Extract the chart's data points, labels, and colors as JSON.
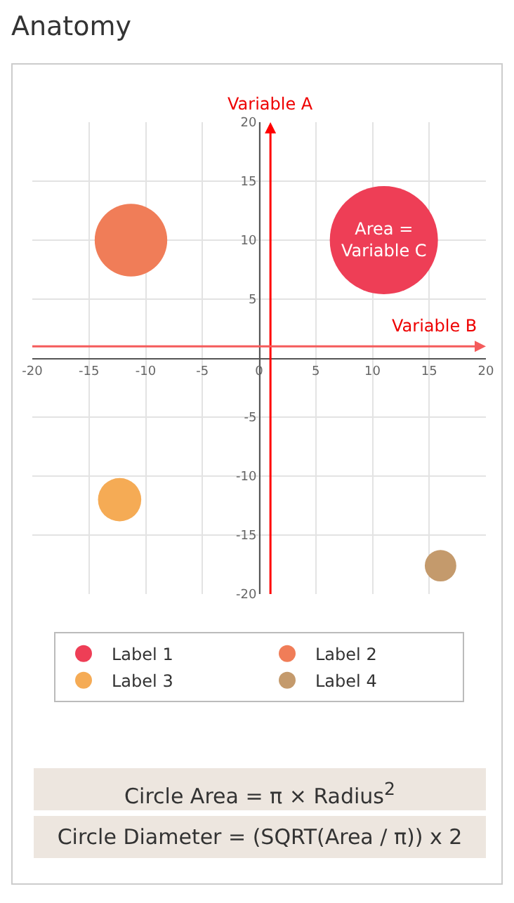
{
  "chart_data": {
    "type": "bubble",
    "title": "Anatomy",
    "xlabel": "Variable B",
    "ylabel": "Variable A",
    "xlim": [
      -20,
      20
    ],
    "xticks": [
      -20,
      -15,
      -10,
      -5,
      0,
      5,
      10,
      15,
      20
    ],
    "ylim": [
      -20,
      20
    ],
    "yticks": [
      -20,
      -15,
      -10,
      -5,
      5,
      10,
      15,
      20
    ],
    "ref_lines": [
      {
        "axis": "x",
        "value": 1,
        "color": "#ff0000"
      },
      {
        "axis": "y",
        "value": 1,
        "color": "#f45b5b"
      }
    ],
    "grid": true,
    "legend": "bottom",
    "series": [
      {
        "name": "Label 1",
        "color": "#ee3e56",
        "x": [
          11
        ],
        "values": [
          10
        ],
        "sizes": [
          1
        ]
      },
      {
        "name": "Label 2",
        "color": "#f07d58",
        "x": [
          -11.3
        ],
        "values": [
          10
        ],
        "sizes": [
          0.45
        ]
      },
      {
        "name": "Label 3",
        "color": "#f5ab55",
        "x": [
          -12.3
        ],
        "values": [
          -12
        ],
        "sizes": [
          0.16
        ]
      },
      {
        "name": "Label 4",
        "color": "#c49a6c",
        "x": [
          16
        ],
        "values": [
          -17.6
        ],
        "sizes": [
          0.085
        ]
      }
    ],
    "annotations": [
      {
        "text": "Area =\nVariable C",
        "x": 11,
        "y": 10
      },
      "Circle Area = π × Radius$^{2}$",
      "Circle Diameter = (SQRT(Area / π)) x 2"
    ]
  }
}
